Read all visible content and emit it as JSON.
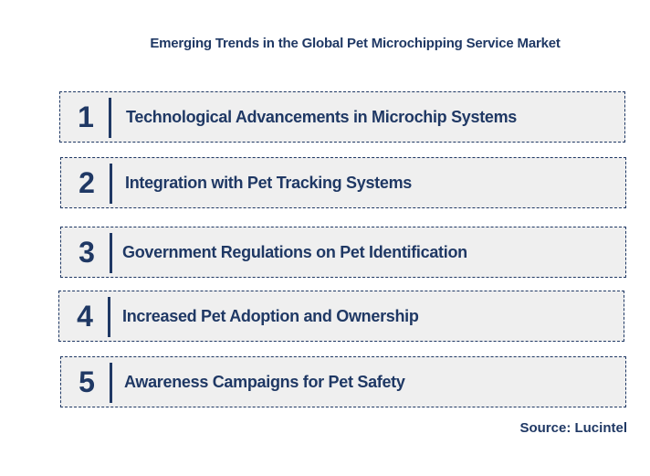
{
  "title": "Emerging Trends in the Global Pet Microchipping Service Market",
  "trends": [
    {
      "number": "1",
      "label": "Technological Advancements in Microchip Systems"
    },
    {
      "number": "2",
      "label": "Integration with Pet Tracking Systems"
    },
    {
      "number": "3",
      "label": "Government Regulations on Pet Identification"
    },
    {
      "number": "4",
      "label": "Increased Pet Adoption and Ownership"
    },
    {
      "number": "5",
      "label": "Awareness Campaigns for Pet Safety"
    }
  ],
  "source": "Source: Lucintel",
  "colors": {
    "text": "#1f3864",
    "box_fill": "#efefef",
    "background": "#ffffff"
  }
}
